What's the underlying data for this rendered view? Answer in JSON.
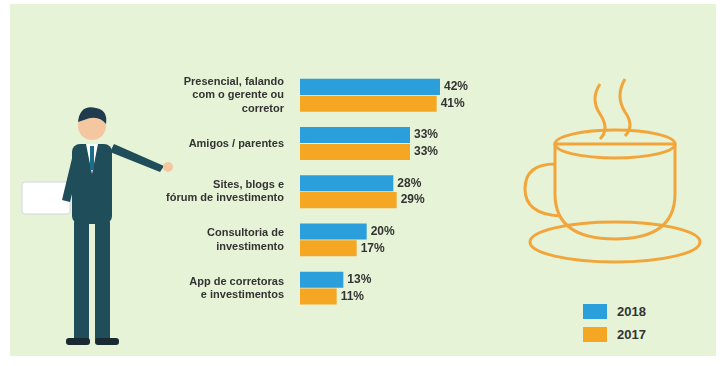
{
  "chart_data": {
    "type": "bar",
    "orientation": "horizontal",
    "categories": [
      [
        "Presencial, falando",
        "com o gerente ou",
        "corretor"
      ],
      [
        "Amigos / parentes"
      ],
      [
        "Sites, blogs e",
        "fórum de investimento"
      ],
      [
        "Consultoria de",
        "investimento"
      ],
      [
        "App de corretoras",
        "e investimentos"
      ]
    ],
    "series": [
      {
        "name": "2018",
        "color": "#2b9fdc",
        "values": [
          42,
          33,
          28,
          20,
          13
        ],
        "value_labels": [
          "42%",
          "33%",
          "28%",
          "20%",
          "13%"
        ]
      },
      {
        "name": "2017",
        "color": "#f5a623",
        "values": [
          41,
          33,
          29,
          17,
          11
        ],
        "value_labels": [
          "41%",
          "33%",
          "29%",
          "17%",
          "11%"
        ]
      }
    ],
    "xlim": [
      0,
      42
    ],
    "data_labels": true,
    "tick_labels": "y",
    "grid": false,
    "legend": "lower right"
  }
}
